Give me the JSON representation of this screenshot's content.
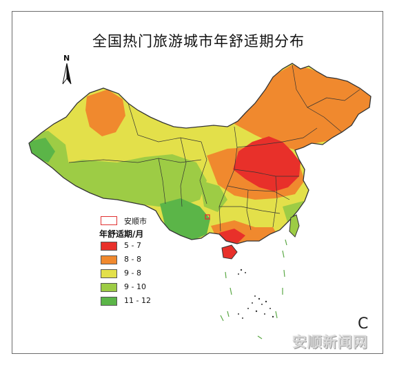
{
  "title": "全国热门旅游城市年舒适期分布",
  "north_label": "N",
  "corner_label": "C",
  "watermark": "安顺新闻网",
  "legend": {
    "city_label": "安顺市",
    "title": "年舒适期/月",
    "items": [
      {
        "label": "5 - 7",
        "color": "#e8302a"
      },
      {
        "label": "8 - 8",
        "color": "#f0892e"
      },
      {
        "label": "9 - 8",
        "color": "#e3e04a"
      },
      {
        "label": "9 - 10",
        "color": "#9dcc45"
      },
      {
        "label": "11 - 12",
        "color": "#5bb548"
      }
    ]
  },
  "colors": {
    "border": "#333333",
    "city_marker": "#e03030",
    "island_dash": "#5aa845"
  }
}
